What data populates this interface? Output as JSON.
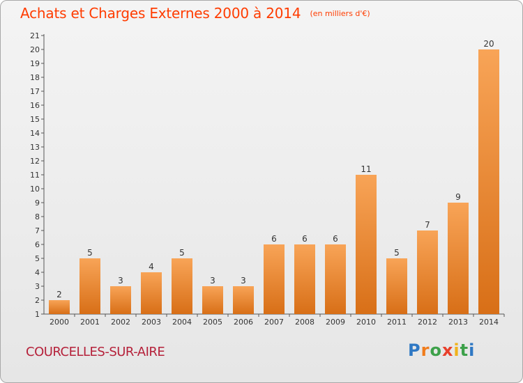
{
  "title": "Achats et Charges Externes 2000 à 2014",
  "unit": "(en milliers d'€)",
  "commune": "COURCELLES-SUR-AIRE",
  "brand": {
    "letters": [
      "P",
      "r",
      "o",
      "x",
      "i",
      "t",
      "i"
    ],
    "colors": [
      "#2f78c4",
      "#f07c1c",
      "#3da14a",
      "#e8402c",
      "#f0b21c",
      "#3da14a",
      "#2f78c4"
    ]
  },
  "colors": {
    "title": "#ff3c00",
    "commune": "#b5213a",
    "bar_top": "#f8a457",
    "bar_bottom": "#d86f17"
  },
  "chart_data": {
    "type": "bar",
    "categories": [
      "2000",
      "2001",
      "2002",
      "2003",
      "2004",
      "2005",
      "2006",
      "2007",
      "2008",
      "2009",
      "2010",
      "2011",
      "2012",
      "2013",
      "2014"
    ],
    "values": [
      2,
      5,
      3,
      4,
      5,
      3,
      3,
      6,
      6,
      6,
      11,
      5,
      7,
      9,
      20
    ],
    "ylim": [
      1,
      21
    ],
    "yticks": [
      "1",
      "2",
      "3",
      "4",
      "5",
      "6",
      "7",
      "8",
      "9",
      "10",
      "11",
      "12",
      "13",
      "14",
      "15",
      "16",
      "17",
      "18",
      "19",
      "20",
      "21"
    ],
    "grid": false,
    "data_labels": true
  }
}
